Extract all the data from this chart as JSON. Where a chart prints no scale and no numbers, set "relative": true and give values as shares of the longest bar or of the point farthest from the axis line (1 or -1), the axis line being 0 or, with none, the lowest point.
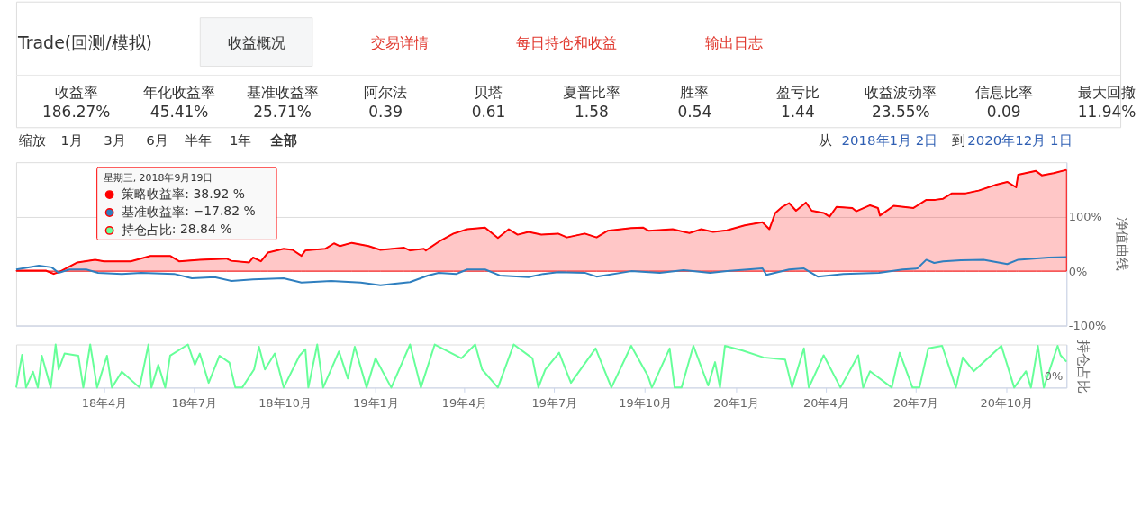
{
  "chart_data": [
    {
      "type": "other",
      "title": "Trade(回测/模拟)",
      "annotations": [
        "收益概况",
        "交易详情",
        "每日持仓和收益",
        "输出日志"
      ],
      "categories": [
        "收益率",
        "年化收益率",
        "基准收益率",
        "阿尔法",
        "贝塔",
        "夏普比率",
        "胜率",
        "盈亏比",
        "收益波动率",
        "信息比率",
        "最大回撤"
      ],
      "value_labels": [
        "186.27%",
        "45.41%",
        "25.71%",
        "0.39",
        "0.61",
        "1.58",
        "0.54",
        "1.44",
        "23.55%",
        "0.09",
        "11.94%"
      ]
    },
    {
      "type": "line",
      "ylabel": "净值曲线",
      "xlim": [
        "2018-01-02",
        "2020-12-01"
      ],
      "ylim": [
        -100,
        200
      ],
      "legend": "top left",
      "yticks": [
        {
          "value": -100,
          "label": "-100%"
        },
        {
          "value": 0,
          "label": "0%"
        },
        {
          "value": 100,
          "label": "100%"
        }
      ],
      "grid": "y",
      "tick_labels": "y",
      "marker": "none",
      "annotations": [
        "缩放",
        "1月",
        "3月",
        "6月",
        "半年",
        "1年",
        "全部",
        "从",
        "2018年1月 2日",
        "到",
        "2020年12月 1日",
        "星期三, 2018年9月19日",
        ": 38.92 %",
        ": −17.82 %",
        ": 28.84 %"
      ],
      "series": [
        {
          "name": "策略收益率",
          "type": "area",
          "color": "#ff0000",
          "x": [
            "2018-01-02",
            "2018-02-01",
            "2018-02-09",
            "2018-02-14",
            "2018-03-05",
            "2018-03-23",
            "2018-04-01",
            "2018-04-28",
            "2018-05-18",
            "2018-06-07",
            "2018-06-16",
            "2018-07-07",
            "2018-08-03",
            "2018-08-08",
            "2018-08-26",
            "2018-08-30",
            "2018-09-07",
            "2018-09-14",
            "2018-09-30",
            "2018-10-09",
            "2018-10-18",
            "2018-10-22",
            "2018-11-11",
            "2018-11-20",
            "2018-11-26",
            "2018-12-08",
            "2018-12-25",
            "2019-01-06",
            "2019-01-30",
            "2019-02-05",
            "2019-02-19",
            "2019-02-21",
            "2019-03-06",
            "2019-03-21",
            "2019-04-04",
            "2019-04-22",
            "2019-05-05",
            "2019-05-16",
            "2019-05-25",
            "2019-06-05",
            "2019-06-18",
            "2019-07-05",
            "2019-07-14",
            "2019-08-01",
            "2019-08-13",
            "2019-08-24",
            "2019-09-17",
            "2019-09-29",
            "2019-10-05",
            "2019-10-29",
            "2019-11-15",
            "2019-11-27",
            "2019-12-09",
            "2019-12-23",
            "2020-01-10",
            "2020-01-28",
            "2020-02-04",
            "2020-02-10",
            "2020-02-17",
            "2020-02-24",
            "2020-03-02",
            "2020-03-12",
            "2020-03-18",
            "2020-03-30",
            "2020-04-05",
            "2020-04-12",
            "2020-04-28",
            "2020-05-02",
            "2020-05-16",
            "2020-05-24",
            "2020-05-26",
            "2020-06-09",
            "2020-06-29",
            "2020-07-12",
            "2020-07-21",
            "2020-07-29",
            "2020-08-07",
            "2020-08-21",
            "2020-09-03",
            "2020-09-21",
            "2020-10-02",
            "2020-10-11",
            "2020-10-13",
            "2020-10-31",
            "2020-11-06",
            "2020-11-18",
            "2020-12-01"
          ],
          "values": [
            1,
            1,
            -5,
            -2,
            16,
            21,
            18,
            18,
            28,
            28,
            18,
            21,
            23,
            19,
            16,
            25,
            18,
            34,
            41,
            39,
            28,
            38,
            41,
            51,
            46,
            52,
            46,
            39,
            43,
            38,
            41,
            38,
            54,
            69,
            77,
            80,
            61,
            77,
            67,
            72,
            67,
            69,
            62,
            69,
            62,
            74,
            79,
            80,
            74,
            77,
            70,
            77,
            72,
            75,
            84,
            90,
            77,
            107,
            118,
            125,
            111,
            126,
            111,
            107,
            100,
            118,
            116,
            110,
            121,
            116,
            102,
            120,
            116,
            131,
            131,
            133,
            143,
            143,
            148,
            159,
            164,
            154,
            177,
            184,
            176,
            180,
            186
          ]
        },
        {
          "name": "基准收益率",
          "type": "line",
          "color": "#2f7fbf",
          "x": [
            "2018-01-02",
            "2018-01-25",
            "2018-02-07",
            "2018-02-14",
            "2018-02-25",
            "2018-03-14",
            "2018-03-26",
            "2018-04-19",
            "2018-05-09",
            "2018-06-11",
            "2018-06-29",
            "2018-07-22",
            "2018-08-08",
            "2018-08-30",
            "2018-09-30",
            "2018-10-18",
            "2018-11-17",
            "2018-12-17",
            "2019-01-06",
            "2019-02-05",
            "2019-02-23",
            "2019-03-06",
            "2019-03-24",
            "2019-04-04",
            "2019-04-22",
            "2019-05-07",
            "2019-06-05",
            "2019-06-20",
            "2019-07-05",
            "2019-08-01",
            "2019-08-13",
            "2019-09-17",
            "2019-10-16",
            "2019-11-09",
            "2019-12-06",
            "2019-12-23",
            "2020-01-28",
            "2020-02-01",
            "2020-02-24",
            "2020-03-10",
            "2020-03-24",
            "2020-04-19",
            "2020-05-25",
            "2020-06-18",
            "2020-07-03",
            "2020-07-12",
            "2020-07-20",
            "2020-07-29",
            "2020-08-16",
            "2020-09-08",
            "2020-10-02",
            "2020-10-13",
            "2020-11-13",
            "2020-12-01"
          ],
          "values": [
            3,
            10,
            7,
            -3,
            3,
            3,
            -3,
            -5,
            -3,
            -5,
            -13,
            -11,
            -18,
            -15,
            -13,
            -21,
            -18,
            -21,
            -26,
            -20,
            -8,
            -3,
            -5,
            3,
            3,
            -8,
            -11,
            -5,
            -2,
            -3,
            -10,
            0,
            -3,
            2,
            -3,
            0,
            5,
            -7,
            3,
            5,
            -10,
            -5,
            -3,
            3,
            5,
            21,
            15,
            18,
            20,
            21,
            13,
            21,
            25,
            26
          ]
        }
      ]
    },
    {
      "type": "line",
      "relative": true,
      "ylabel": "持仓占比",
      "xlim": [
        "2018-01-02",
        "2020-12-01"
      ],
      "xticks": [
        {
          "value": "2018-04-01",
          "label": "18年4月"
        },
        {
          "value": "2018-07-01",
          "label": "18年7月"
        },
        {
          "value": "2018-10-01",
          "label": "18年10月"
        },
        {
          "value": "2019-01-01",
          "label": "19年1月"
        },
        {
          "value": "2019-04-01",
          "label": "19年4月"
        },
        {
          "value": "2019-07-01",
          "label": "19年7月"
        },
        {
          "value": "2019-10-01",
          "label": "19年10月"
        },
        {
          "value": "2020-01-01",
          "label": "20年1月"
        },
        {
          "value": "2020-04-01",
          "label": "20年4月"
        },
        {
          "value": "2020-07-01",
          "label": "20年7月"
        },
        {
          "value": "2020-10-01",
          "label": "20年10月"
        }
      ],
      "tick_labels": "x",
      "marker": "none",
      "annotations": [
        "0%"
      ],
      "series": [
        {
          "name": "持仓占比",
          "color": "#66ff99",
          "x": [
            "2018-01-02",
            "2018-01-08",
            "2018-01-12",
            "2018-01-19",
            "2018-01-24",
            "2018-01-28",
            "2018-02-06",
            "2018-02-11",
            "2018-02-14",
            "2018-02-20",
            "2018-03-06",
            "2018-03-11",
            "2018-03-18",
            "2018-03-25",
            "2018-04-04",
            "2018-04-09",
            "2018-04-19",
            "2018-05-07",
            "2018-05-16",
            "2018-05-19",
            "2018-05-26",
            "2018-06-02",
            "2018-06-07",
            "2018-06-25",
            "2018-07-02",
            "2018-07-07",
            "2018-07-16",
            "2018-07-27",
            "2018-08-06",
            "2018-08-12",
            "2018-08-19",
            "2018-08-31",
            "2018-09-05",
            "2018-09-11",
            "2018-09-21",
            "2018-09-30",
            "2018-10-16",
            "2018-10-22",
            "2018-10-25",
            "2018-11-03",
            "2018-11-09",
            "2018-11-25",
            "2018-12-04",
            "2018-12-11",
            "2018-12-23",
            "2019-01-01",
            "2019-01-17",
            "2019-02-05",
            "2019-02-16",
            "2019-03-02",
            "2019-03-29",
            "2019-04-12",
            "2019-04-19",
            "2019-05-05",
            "2019-05-21",
            "2019-06-09",
            "2019-06-15",
            "2019-06-22",
            "2019-07-06",
            "2019-07-18",
            "2019-08-12",
            "2019-08-28",
            "2019-09-17",
            "2019-10-04",
            "2019-10-08",
            "2019-10-26",
            "2019-10-31",
            "2019-11-07",
            "2019-11-19",
            "2019-12-04",
            "2019-12-11",
            "2019-12-16",
            "2019-12-21",
            "2020-01-08",
            "2020-01-29",
            "2020-02-20",
            "2020-02-27",
            "2020-03-10",
            "2020-03-15",
            "2020-03-30",
            "2020-04-16",
            "2020-05-04",
            "2020-05-09",
            "2020-05-16",
            "2020-06-07",
            "2020-06-15",
            "2020-06-28",
            "2020-07-05",
            "2020-07-14",
            "2020-07-28",
            "2020-08-11",
            "2020-08-18",
            "2020-08-29",
            "2020-09-26",
            "2020-10-09",
            "2020-10-21",
            "2020-10-26",
            "2020-11-02",
            "2020-11-08",
            "2020-11-22",
            "2020-11-25",
            "2020-12-01"
          ],
          "values": [
            0,
            0.76,
            0,
            0.37,
            0,
            0.74,
            0,
            1,
            0.42,
            0.79,
            0.74,
            0,
            1,
            0,
            0.74,
            0,
            0.37,
            0,
            1,
            0,
            0.53,
            0,
            0.74,
            1,
            0.53,
            0.79,
            0.11,
            0.74,
            0.58,
            0,
            0,
            0.42,
            0.95,
            0.42,
            0.79,
            0,
            0.74,
            0.89,
            0,
            1,
            0,
            0.84,
            0.21,
            0.95,
            0,
            0.68,
            0,
            1,
            0,
            1,
            0.68,
            1,
            0.42,
            0,
            1,
            0.68,
            0,
            0.42,
            0.81,
            0.11,
            0.91,
            0,
            0.97,
            0.27,
            0,
            0.91,
            0,
            0,
            0.97,
            0.05,
            0.59,
            0,
            0.97,
            0.86,
            0.7,
            0.65,
            0,
            0.91,
            0,
            0.75,
            0,
            0.75,
            0,
            0.38,
            0,
            0.81,
            0,
            0,
            0.91,
            0.97,
            0,
            0.7,
            0.38,
            0.97,
            0,
            0.38,
            0,
            0.97,
            0,
            0.97,
            0.75,
            0.6
          ]
        }
      ]
    }
  ]
}
